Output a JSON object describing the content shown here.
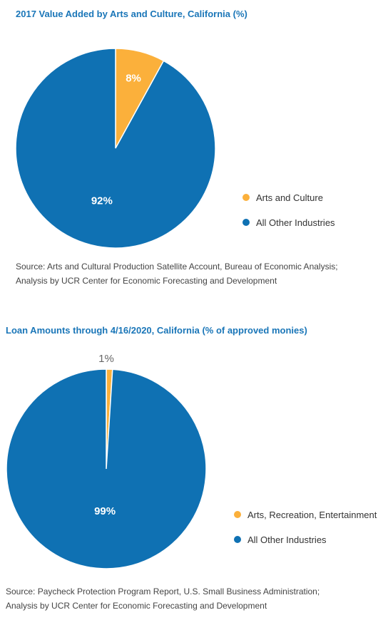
{
  "chart_data": [
    {
      "type": "pie",
      "title": "2017 Value Added by Arts and Culture, California (%)",
      "slices": [
        {
          "label": "Arts and Culture",
          "value": 8,
          "display": "8%",
          "color": "#fbb03b"
        },
        {
          "label": "All Other Industries",
          "value": 92,
          "display": "92%",
          "color": "#0f71b3"
        }
      ],
      "legend_position": "right",
      "source": [
        "Source: Arts and Cultural Production Satellite Account, Bureau of Economic Analysis;",
        "Analysis by UCR Center for Economic Forecasting and Development"
      ]
    },
    {
      "type": "pie",
      "title": "Loan Amounts through 4/16/2020, California (% of approved monies)",
      "slices": [
        {
          "label": "Arts, Recreation, Entertainment",
          "value": 1,
          "display": "1%",
          "color": "#fbb03b"
        },
        {
          "label": "All Other Industries",
          "value": 99,
          "display": "99%",
          "color": "#0f71b3"
        }
      ],
      "legend_position": "right",
      "source": [
        "Source: Paycheck Protection Program Report, U.S. Small Business Administration;",
        "Analysis by UCR Center for Economic Forecasting and Development"
      ]
    }
  ]
}
